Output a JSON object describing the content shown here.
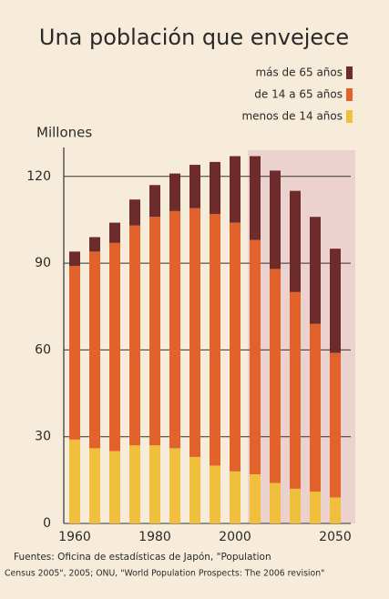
{
  "chart_data": {
    "type": "stacked_bar",
    "title": "Una población que envejece",
    "y_label": "Millones",
    "categories": [
      "1960",
      null,
      null,
      null,
      "1980",
      null,
      null,
      null,
      "2000",
      null,
      null,
      null,
      null,
      "2050"
    ],
    "series": [
      {
        "name": "menos de 14 años",
        "color": "#f0c03c",
        "values": [
          29,
          26,
          25,
          27,
          27,
          26,
          23,
          20,
          18,
          17,
          14,
          12,
          11,
          9
        ]
      },
      {
        "name": "de 14 a 65 años",
        "color": "#e2622c",
        "values": [
          60,
          68,
          72,
          76,
          79,
          82,
          86,
          87,
          86,
          81,
          74,
          68,
          58,
          50
        ]
      },
      {
        "name": "más de 65 años",
        "color": "#6e2b2c",
        "values": [
          5,
          5,
          7,
          9,
          11,
          13,
          15,
          18,
          23,
          29,
          34,
          35,
          37,
          36
        ]
      }
    ],
    "ylim": [
      0,
      130
    ],
    "yticks": [
      0,
      30,
      60,
      90,
      120
    ],
    "grid": true,
    "source": [
      "Fuentes: Oficina de estadísticas de Japón, \"Population",
      "Census 2005\", 2005; ONU, \"World Population Prospects: The 2006 revision\""
    ]
  }
}
